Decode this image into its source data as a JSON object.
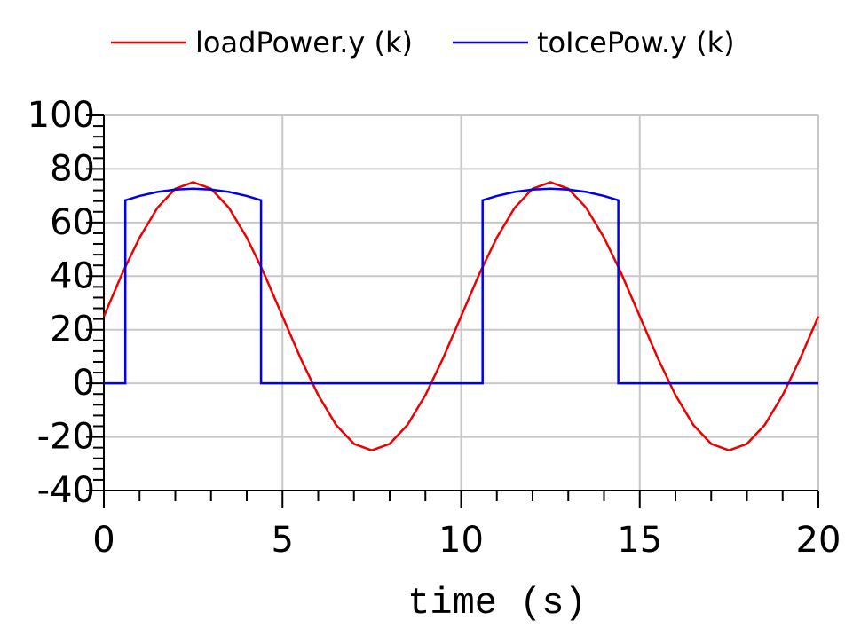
{
  "chart_data": {
    "type": "line",
    "x_label": "time (s)",
    "x": [
      0,
      0.5,
      0.6,
      0.6,
      1,
      1.5,
      2,
      2.5,
      3,
      3.5,
      4,
      4.4,
      4.4,
      4.5,
      5,
      5.5,
      6,
      6.5,
      7,
      7.5,
      8,
      8.5,
      9,
      9.5,
      10,
      10.5,
      10.6,
      10.6,
      11,
      11.5,
      12,
      12.5,
      13,
      13.5,
      14,
      14.4,
      14.4,
      14.5,
      15,
      15.5,
      16,
      16.5,
      17,
      17.5,
      18,
      18.5,
      19,
      19.5,
      20
    ],
    "series": [
      {
        "name": "loadPower.y (k)",
        "color": "#ee0000",
        "values": [
          25,
          40.5,
          43.4,
          43.4,
          54.4,
          65.5,
          72.6,
          75,
          72.6,
          65.5,
          54.4,
          43.4,
          43.4,
          40.5,
          25,
          9.5,
          -4.4,
          -15.5,
          -22.6,
          -25,
          -22.6,
          -15.5,
          -4.4,
          9.5,
          25,
          40.5,
          43.4,
          43.4,
          54.4,
          65.5,
          72.6,
          75,
          72.6,
          65.5,
          54.4,
          43.4,
          43.4,
          40.5,
          25,
          9.5,
          -4.4,
          -15.5,
          -22.6,
          -25,
          -22.6,
          -15.5,
          -4.4,
          9.5,
          25
        ]
      },
      {
        "name": "toIcePow.y (k)",
        "color": "#0000ee",
        "values": [
          0,
          0,
          0,
          68.3,
          69.9,
          71.4,
          72.3,
          72.6,
          72.3,
          71.4,
          69.9,
          68.3,
          0,
          0,
          0,
          0,
          0,
          0,
          0,
          0,
          0,
          0,
          0,
          0,
          0,
          0,
          0,
          68.3,
          69.9,
          71.4,
          72.3,
          72.6,
          72.3,
          71.4,
          69.9,
          68.3,
          0,
          0,
          0,
          0,
          0,
          0,
          0,
          0,
          0,
          0,
          0,
          0,
          0
        ]
      }
    ],
    "xlim": [
      0,
      20
    ],
    "xticks": [
      0,
      5,
      10,
      15,
      20
    ],
    "ylim": [
      -40,
      100
    ],
    "yticks": [
      -40,
      -20,
      0,
      20,
      40,
      60,
      80,
      100
    ],
    "grid": true,
    "legend": "top"
  }
}
